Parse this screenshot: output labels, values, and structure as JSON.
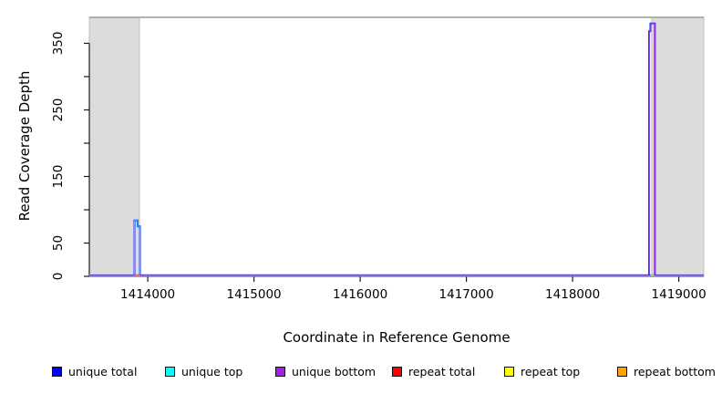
{
  "figure": {
    "kind": "R coverage plot",
    "background": "#ffffff"
  },
  "chart_data": {
    "type": "line",
    "title": "",
    "xlabel": "Coordinate in Reference Genome",
    "ylabel": "Read Coverage Depth",
    "xlim": [
      1413450,
      1419235
    ],
    "ylim": [
      0,
      389
    ],
    "x_ticks": [
      1414000,
      1415000,
      1416000,
      1417000,
      1418000,
      1419000
    ],
    "y_ticks": [
      0,
      50,
      100,
      150,
      200,
      250,
      300,
      350
    ],
    "y_tick_labels": [
      "0",
      "50",
      "",
      "150",
      "",
      "250",
      "",
      "350"
    ],
    "grid": false,
    "legend_position": "bottom",
    "shaded_regions": [
      {
        "name": "left-flank",
        "from": 1413450,
        "to": 1413922,
        "fill": "#dcdcdc",
        "stroke": "#b5b5b5"
      },
      {
        "name": "right-flank",
        "from": 1418745,
        "to": 1419235,
        "fill": "#dcdcdc",
        "stroke": "#b5b5b5"
      }
    ],
    "baseline_depth": 0,
    "series": [
      {
        "name": "unique total",
        "color": "#0000ff",
        "segments": [
          [
            1413875,
            1413905,
            84
          ],
          [
            1413905,
            1413927,
            75
          ],
          [
            1418719,
            1418732,
            368
          ],
          [
            1418732,
            1418775,
            380
          ]
        ]
      },
      {
        "name": "unique top",
        "color": "#00ffff",
        "segments": [
          [
            1413875,
            1413905,
            84
          ],
          [
            1413905,
            1413927,
            75
          ]
        ]
      },
      {
        "name": "unique bottom",
        "color": "#a020f0",
        "segments": [
          [
            1418719,
            1418732,
            368
          ],
          [
            1418732,
            1418775,
            380
          ]
        ]
      },
      {
        "name": "repeat total",
        "color": "#ff0000",
        "segments": [
          [
            1413878,
            1413925,
            2
          ]
        ]
      },
      {
        "name": "repeat top",
        "color": "#ffff00",
        "segments": [
          [
            1418733,
            1418770,
            2
          ]
        ]
      },
      {
        "name": "repeat bottom",
        "color": "#ffa500",
        "segments": []
      }
    ]
  },
  "legend": {
    "items": [
      {
        "label": "unique total",
        "color": "#0000ff"
      },
      {
        "label": "unique top",
        "color": "#00ffff"
      },
      {
        "label": "unique bottom",
        "color": "#a020f0"
      },
      {
        "label": "repeat total",
        "color": "#ff0000"
      },
      {
        "label": "repeat top",
        "color": "#ffff00"
      },
      {
        "label": "repeat bottom",
        "color": "#ffa500"
      }
    ]
  }
}
